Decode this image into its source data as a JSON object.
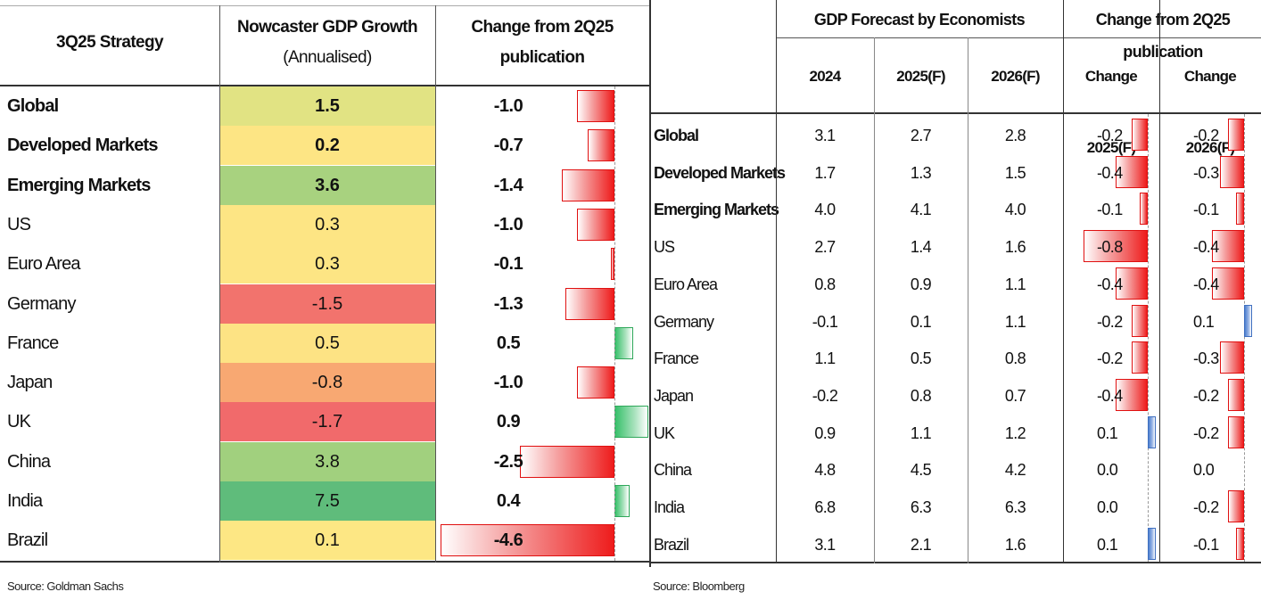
{
  "left": {
    "headers": {
      "col1": "3Q25 Strategy",
      "col2_line1": "Nowcaster GDP Growth",
      "col2_line2": "(Annualised)",
      "col3": "Change from 2Q25 publication"
    },
    "source": "Source: Goldman Sachs"
  },
  "right": {
    "group_headers": {
      "forecast": "GDP Forecast by Economists",
      "change": "Change from 2Q25 publication"
    },
    "columns": [
      "2024",
      "2025(F)",
      "2026(F)",
      "Change 2025(F)",
      "Change 2026(F)"
    ],
    "source": "Source: Bloomberg"
  },
  "colors": {
    "gdp_heat": {
      "Global": "#e1e383",
      "Developed Markets": "#fde584",
      "Emerging Markets": "#a8d27f",
      "US": "#fde584",
      "Euro Area": "#fde584",
      "Germany": "#f2736d",
      "France": "#fde384",
      "Japan": "#f8a872",
      "UK": "#f16a6b",
      "China": "#a1d07e",
      "India": "#5fbc7b",
      "Brazil": "#fde784"
    },
    "negative_bar": "#ee1c1c",
    "positive_bar_left": "#37c06a",
    "positive_bar_right": "#4d7fd0"
  },
  "chart_data": [
    {
      "type": "table",
      "title": "3Q25 Strategy",
      "columns": [
        "3Q25 Strategy",
        "Nowcaster GDP Growth (Annualised)",
        "Change from 2Q25 publication"
      ],
      "rows": [
        {
          "region": "Global",
          "bold": true,
          "gdp": "1.5",
          "change": "-1.0",
          "change_value": -1.0
        },
        {
          "region": "Developed Markets",
          "bold": true,
          "gdp": "0.2",
          "change": "-0.7",
          "change_value": -0.7
        },
        {
          "region": "Emerging Markets",
          "bold": true,
          "gdp": "3.6",
          "change": "-1.4",
          "change_value": -1.4
        },
        {
          "region": "US",
          "bold": false,
          "gdp": "0.3",
          "change": "-1.0",
          "change_value": -1.0
        },
        {
          "region": "Euro Area",
          "bold": false,
          "gdp": "0.3",
          "change": "-0.1",
          "change_value": -0.1
        },
        {
          "region": "Germany",
          "bold": false,
          "gdp": "-1.5",
          "change": "-1.3",
          "change_value": -1.3
        },
        {
          "region": "France",
          "bold": false,
          "gdp": "0.5",
          "change": "0.5",
          "change_value": 0.5
        },
        {
          "region": "Japan",
          "bold": false,
          "gdp": "-0.8",
          "change": "-1.0",
          "change_value": -1.0
        },
        {
          "region": "UK",
          "bold": false,
          "gdp": "-1.7",
          "change": "0.9",
          "change_value": 0.9
        },
        {
          "region": "China",
          "bold": false,
          "gdp": "3.8",
          "change": "-2.5",
          "change_value": -2.5
        },
        {
          "region": "India",
          "bold": false,
          "gdp": "7.5",
          "change": "0.4",
          "change_value": 0.4
        },
        {
          "region": "Brazil",
          "bold": false,
          "gdp": "0.1",
          "change": "-4.6",
          "change_value": -4.6
        }
      ]
    },
    {
      "type": "table",
      "title": "GDP Forecast by Economists",
      "columns": [
        "2024",
        "2025(F)",
        "2026(F)",
        "Change 2025(F)",
        "Change 2026(F)"
      ],
      "rows": [
        {
          "region": "Global",
          "bold": true,
          "y2024": "3.1",
          "y2025": "2.7",
          "y2026": "2.8",
          "c2025": "-0.2",
          "c2025_value": -0.2,
          "c2026": "-0.2",
          "c2026_value": -0.2
        },
        {
          "region": "Developed Markets",
          "bold": true,
          "y2024": "1.7",
          "y2025": "1.3",
          "y2026": "1.5",
          "c2025": "-0.4",
          "c2025_value": -0.4,
          "c2026": "-0.3",
          "c2026_value": -0.3
        },
        {
          "region": "Emerging Markets",
          "bold": true,
          "y2024": "4.0",
          "y2025": "4.1",
          "y2026": "4.0",
          "c2025": "-0.1",
          "c2025_value": -0.1,
          "c2026": "-0.1",
          "c2026_value": -0.1
        },
        {
          "region": "US",
          "bold": false,
          "y2024": "2.7",
          "y2025": "1.4",
          "y2026": "1.6",
          "c2025": "-0.8",
          "c2025_value": -0.8,
          "c2026": "-0.4",
          "c2026_value": -0.4
        },
        {
          "region": "Euro Area",
          "bold": false,
          "y2024": "0.8",
          "y2025": "0.9",
          "y2026": "1.1",
          "c2025": "-0.4",
          "c2025_value": -0.4,
          "c2026": "-0.4",
          "c2026_value": -0.4
        },
        {
          "region": "Germany",
          "bold": false,
          "y2024": "-0.1",
          "y2025": "0.1",
          "y2026": "1.1",
          "c2025": "-0.2",
          "c2025_value": -0.2,
          "c2026": "0.1",
          "c2026_value": 0.1
        },
        {
          "region": "France",
          "bold": false,
          "y2024": "1.1",
          "y2025": "0.5",
          "y2026": "0.8",
          "c2025": "-0.2",
          "c2025_value": -0.2,
          "c2026": "-0.3",
          "c2026_value": -0.3
        },
        {
          "region": "Japan",
          "bold": false,
          "y2024": "-0.2",
          "y2025": "0.8",
          "y2026": "0.7",
          "c2025": "-0.4",
          "c2025_value": -0.4,
          "c2026": "-0.2",
          "c2026_value": -0.2
        },
        {
          "region": "UK",
          "bold": false,
          "y2024": "0.9",
          "y2025": "1.1",
          "y2026": "1.2",
          "c2025": "0.1",
          "c2025_value": 0.1,
          "c2026": "-0.2",
          "c2026_value": -0.2
        },
        {
          "region": "China",
          "bold": false,
          "y2024": "4.8",
          "y2025": "4.5",
          "y2026": "4.2",
          "c2025": "0.0",
          "c2025_value": 0.0,
          "c2026": "0.0",
          "c2026_value": 0.0
        },
        {
          "region": "India",
          "bold": false,
          "y2024": "6.8",
          "y2025": "6.3",
          "y2026": "6.3",
          "c2025": "0.0",
          "c2025_value": 0.0,
          "c2026": "-0.2",
          "c2026_value": -0.2
        },
        {
          "region": "Brazil",
          "bold": false,
          "y2024": "3.1",
          "y2025": "2.1",
          "y2026": "1.6",
          "c2025": "0.1",
          "c2025_value": 0.1,
          "c2026": "-0.1",
          "c2026_value": -0.1
        }
      ]
    }
  ]
}
